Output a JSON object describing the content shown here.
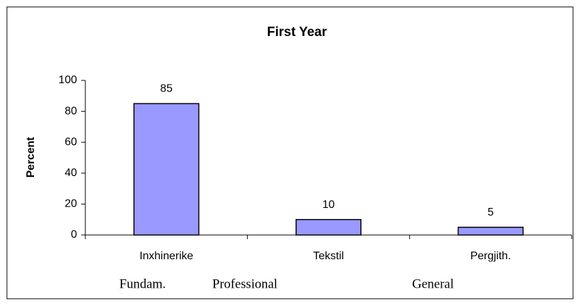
{
  "chart_data": {
    "type": "bar",
    "title": "First Year",
    "y_label": "Percent",
    "categories": [
      "Inxhinerike",
      "Tekstil",
      "Pergjith."
    ],
    "values": [
      85,
      10,
      5
    ],
    "color": "#9999ff",
    "ylim": [
      0,
      100
    ],
    "yticks": [
      0,
      20,
      40,
      60,
      80,
      100
    ],
    "grid": false,
    "annotations": [
      "Fundam.",
      "Professional",
      "General"
    ]
  }
}
